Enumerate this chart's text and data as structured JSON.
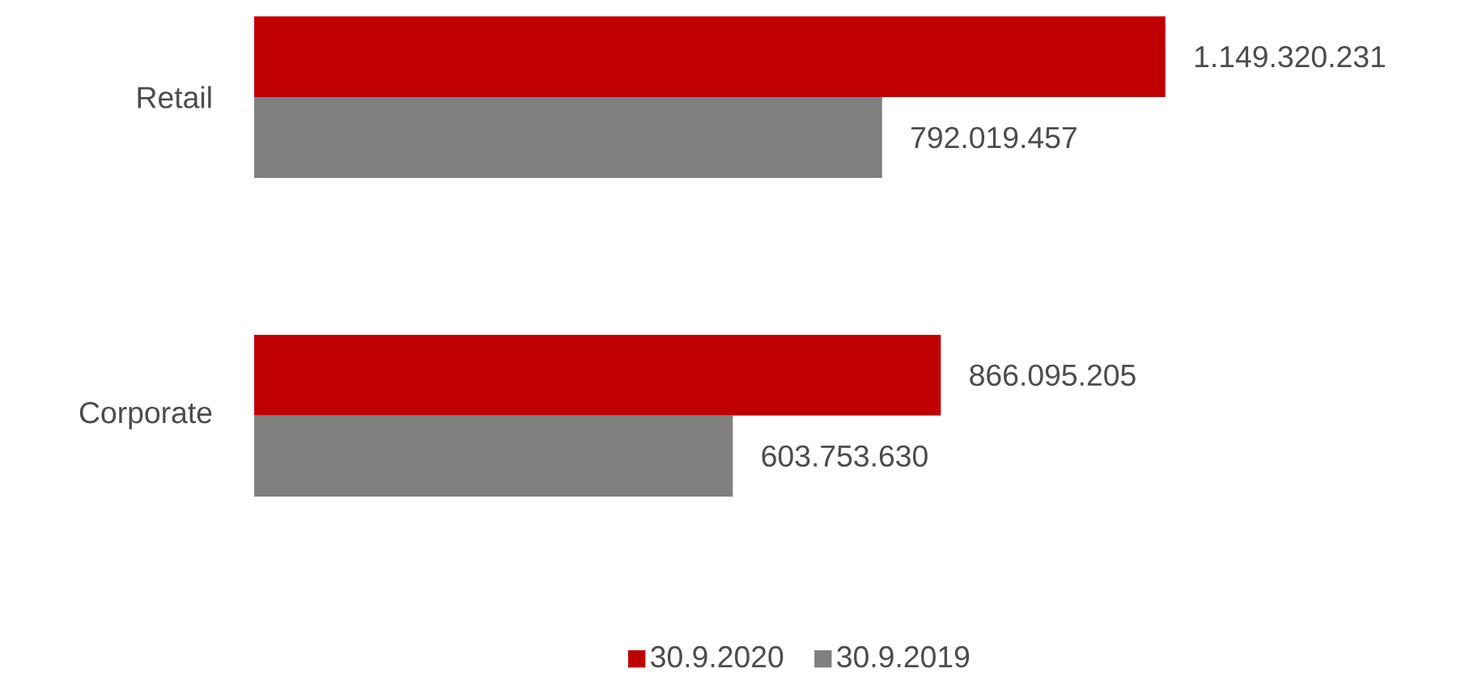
{
  "chart_data": {
    "type": "bar",
    "orientation": "horizontal",
    "categories": [
      "Retail",
      "Corporate"
    ],
    "series": [
      {
        "name": "30.9.2020",
        "color": "#c00000",
        "values": [
          1149320231,
          866095205
        ],
        "value_labels": [
          "1.149.320.231",
          "866.095.205"
        ]
      },
      {
        "name": "30.9.2019",
        "color": "#808080",
        "values": [
          792019457,
          603753630
        ],
        "value_labels": [
          "792.019.457",
          "603.753.630"
        ]
      }
    ],
    "legend": "bottom"
  }
}
